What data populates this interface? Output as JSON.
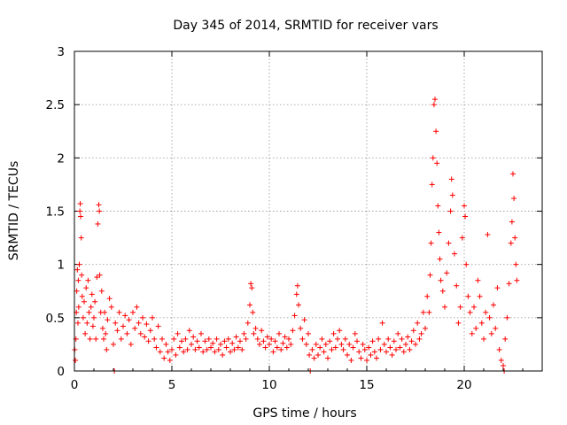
{
  "chart_data": {
    "type": "scatter",
    "title": "Day 345 of 2014, SRMTID for receiver vars",
    "xlabel": "GPS time / hours",
    "ylabel": "SRMTID / TECUs",
    "xlim": [
      0,
      24
    ],
    "ylim": [
      0,
      3
    ],
    "x_ticks": [
      {
        "value": 0,
        "label": "0"
      },
      {
        "value": 5,
        "label": "5"
      },
      {
        "value": 10,
        "label": "10"
      },
      {
        "value": 15,
        "label": "15"
      },
      {
        "value": 20,
        "label": "20"
      }
    ],
    "y_ticks": [
      {
        "value": 0,
        "label": "0"
      },
      {
        "value": 0.5,
        "label": "0.5"
      },
      {
        "value": 1,
        "label": "1"
      },
      {
        "value": 1.5,
        "label": "1.5"
      },
      {
        "value": 2,
        "label": "2"
      },
      {
        "value": 2.5,
        "label": "2.5"
      },
      {
        "value": 3,
        "label": "3"
      }
    ],
    "grid": true,
    "marker": "+",
    "marker_color": "#ff0000",
    "series": [
      {
        "name": "SRMTID",
        "points": [
          [
            0.02,
            0.2
          ],
          [
            0.05,
            0.1
          ],
          [
            0.08,
            0.3
          ],
          [
            0.1,
            0.55
          ],
          [
            0.12,
            0.75
          ],
          [
            0.15,
            0.95
          ],
          [
            0.18,
            0.45
          ],
          [
            0.2,
            0.85
          ],
          [
            0.22,
            0.6
          ],
          [
            0.25,
            1.0
          ],
          [
            0.28,
            1.5
          ],
          [
            0.3,
            1.57
          ],
          [
            0.32,
            1.45
          ],
          [
            0.35,
            1.25
          ],
          [
            0.37,
            0.9
          ],
          [
            0.4,
            0.7
          ],
          [
            0.45,
            0.5
          ],
          [
            0.5,
            0.65
          ],
          [
            0.55,
            0.35
          ],
          [
            0.6,
            0.78
          ],
          [
            0.65,
            0.45
          ],
          [
            0.7,
            0.85
          ],
          [
            0.75,
            0.55
          ],
          [
            0.8,
            0.3
          ],
          [
            0.85,
            0.6
          ],
          [
            0.9,
            0.72
          ],
          [
            0.95,
            0.42
          ],
          [
            1.0,
            0.5
          ],
          [
            1.05,
            0.65
          ],
          [
            1.1,
            0.3
          ],
          [
            1.15,
            0.88
          ],
          [
            1.2,
            1.38
          ],
          [
            1.25,
            1.56
          ],
          [
            1.28,
            1.5
          ],
          [
            1.3,
            0.9
          ],
          [
            1.35,
            0.55
          ],
          [
            1.4,
            0.75
          ],
          [
            1.45,
            0.4
          ],
          [
            1.5,
            0.3
          ],
          [
            1.55,
            0.55
          ],
          [
            1.6,
            0.35
          ],
          [
            1.65,
            0.2
          ],
          [
            1.7,
            0.48
          ],
          [
            1.8,
            0.68
          ],
          [
            1.9,
            0.6
          ],
          [
            2.0,
            0.25
          ],
          [
            2.05,
            0.0
          ],
          [
            2.1,
            0.45
          ],
          [
            2.2,
            0.38
          ],
          [
            2.3,
            0.55
          ],
          [
            2.4,
            0.3
          ],
          [
            2.5,
            0.42
          ],
          [
            2.6,
            0.52
          ],
          [
            2.7,
            0.35
          ],
          [
            2.8,
            0.48
          ],
          [
            2.9,
            0.25
          ],
          [
            3.0,
            0.55
          ],
          [
            3.1,
            0.4
          ],
          [
            3.2,
            0.6
          ],
          [
            3.3,
            0.45
          ],
          [
            3.4,
            0.35
          ],
          [
            3.5,
            0.5
          ],
          [
            3.6,
            0.32
          ],
          [
            3.7,
            0.44
          ],
          [
            3.8,
            0.28
          ],
          [
            3.9,
            0.38
          ],
          [
            4.0,
            0.5
          ],
          [
            4.1,
            0.3
          ],
          [
            4.2,
            0.22
          ],
          [
            4.3,
            0.42
          ],
          [
            4.4,
            0.18
          ],
          [
            4.5,
            0.3
          ],
          [
            4.6,
            0.12
          ],
          [
            4.7,
            0.25
          ],
          [
            4.8,
            0.18
          ],
          [
            4.9,
            0.1
          ],
          [
            5.0,
            0.2
          ],
          [
            5.1,
            0.3
          ],
          [
            5.2,
            0.15
          ],
          [
            5.3,
            0.35
          ],
          [
            5.4,
            0.22
          ],
          [
            5.5,
            0.28
          ],
          [
            5.6,
            0.18
          ],
          [
            5.7,
            0.3
          ],
          [
            5.8,
            0.2
          ],
          [
            5.9,
            0.38
          ],
          [
            6.0,
            0.25
          ],
          [
            6.1,
            0.32
          ],
          [
            6.2,
            0.2
          ],
          [
            6.3,
            0.28
          ],
          [
            6.4,
            0.22
          ],
          [
            6.5,
            0.35
          ],
          [
            6.6,
            0.18
          ],
          [
            6.7,
            0.28
          ],
          [
            6.8,
            0.2
          ],
          [
            6.9,
            0.3
          ],
          [
            7.0,
            0.22
          ],
          [
            7.1,
            0.26
          ],
          [
            7.2,
            0.18
          ],
          [
            7.3,
            0.3
          ],
          [
            7.4,
            0.2
          ],
          [
            7.5,
            0.25
          ],
          [
            7.6,
            0.15
          ],
          [
            7.7,
            0.28
          ],
          [
            7.8,
            0.22
          ],
          [
            7.9,
            0.3
          ],
          [
            8.0,
            0.18
          ],
          [
            8.1,
            0.26
          ],
          [
            8.2,
            0.2
          ],
          [
            8.3,
            0.32
          ],
          [
            8.4,
            0.22
          ],
          [
            8.5,
            0.28
          ],
          [
            8.6,
            0.2
          ],
          [
            8.7,
            0.35
          ],
          [
            8.8,
            0.3
          ],
          [
            8.9,
            0.45
          ],
          [
            9.0,
            0.62
          ],
          [
            9.05,
            0.82
          ],
          [
            9.1,
            0.78
          ],
          [
            9.15,
            0.55
          ],
          [
            9.2,
            0.35
          ],
          [
            9.3,
            0.4
          ],
          [
            9.4,
            0.3
          ],
          [
            9.5,
            0.25
          ],
          [
            9.6,
            0.38
          ],
          [
            9.7,
            0.28
          ],
          [
            9.8,
            0.22
          ],
          [
            9.9,
            0.32
          ],
          [
            10.0,
            0.25
          ],
          [
            10.1,
            0.3
          ],
          [
            10.2,
            0.18
          ],
          [
            10.3,
            0.28
          ],
          [
            10.4,
            0.22
          ],
          [
            10.5,
            0.35
          ],
          [
            10.6,
            0.2
          ],
          [
            10.7,
            0.26
          ],
          [
            10.8,
            0.32
          ],
          [
            10.9,
            0.22
          ],
          [
            11.0,
            0.3
          ],
          [
            11.1,
            0.25
          ],
          [
            11.2,
            0.38
          ],
          [
            11.3,
            0.52
          ],
          [
            11.4,
            0.72
          ],
          [
            11.45,
            0.8
          ],
          [
            11.5,
            0.62
          ],
          [
            11.6,
            0.4
          ],
          [
            11.7,
            0.3
          ],
          [
            11.8,
            0.48
          ],
          [
            11.9,
            0.25
          ],
          [
            12.0,
            0.35
          ],
          [
            12.05,
            0.15
          ],
          [
            12.1,
            0.0
          ],
          [
            12.2,
            0.2
          ],
          [
            12.3,
            0.12
          ],
          [
            12.4,
            0.25
          ],
          [
            12.5,
            0.15
          ],
          [
            12.6,
            0.22
          ],
          [
            12.7,
            0.3
          ],
          [
            12.8,
            0.18
          ],
          [
            12.9,
            0.25
          ],
          [
            13.0,
            0.12
          ],
          [
            13.1,
            0.28
          ],
          [
            13.2,
            0.2
          ],
          [
            13.3,
            0.35
          ],
          [
            13.4,
            0.22
          ],
          [
            13.5,
            0.3
          ],
          [
            13.6,
            0.38
          ],
          [
            13.7,
            0.25
          ],
          [
            13.8,
            0.2
          ],
          [
            13.9,
            0.3
          ],
          [
            14.0,
            0.15
          ],
          [
            14.1,
            0.25
          ],
          [
            14.2,
            0.1
          ],
          [
            14.3,
            0.22
          ],
          [
            14.4,
            0.35
          ],
          [
            14.5,
            0.28
          ],
          [
            14.6,
            0.18
          ],
          [
            14.7,
            0.12
          ],
          [
            14.8,
            0.25
          ],
          [
            14.9,
            0.2
          ],
          [
            15.0,
            0.1
          ],
          [
            15.1,
            0.22
          ],
          [
            15.2,
            0.15
          ],
          [
            15.3,
            0.28
          ],
          [
            15.4,
            0.18
          ],
          [
            15.5,
            0.12
          ],
          [
            15.6,
            0.3
          ],
          [
            15.7,
            0.2
          ],
          [
            15.8,
            0.45
          ],
          [
            15.9,
            0.25
          ],
          [
            16.0,
            0.18
          ],
          [
            16.1,
            0.3
          ],
          [
            16.2,
            0.22
          ],
          [
            16.3,
            0.15
          ],
          [
            16.4,
            0.28
          ],
          [
            16.5,
            0.2
          ],
          [
            16.6,
            0.35
          ],
          [
            16.7,
            0.22
          ],
          [
            16.8,
            0.3
          ],
          [
            16.9,
            0.18
          ],
          [
            17.0,
            0.25
          ],
          [
            17.1,
            0.32
          ],
          [
            17.2,
            0.2
          ],
          [
            17.3,
            0.28
          ],
          [
            17.4,
            0.38
          ],
          [
            17.5,
            0.25
          ],
          [
            17.6,
            0.45
          ],
          [
            17.7,
            0.3
          ],
          [
            17.8,
            0.35
          ],
          [
            17.9,
            0.55
          ],
          [
            18.0,
            0.4
          ],
          [
            18.1,
            0.7
          ],
          [
            18.2,
            0.55
          ],
          [
            18.25,
            0.9
          ],
          [
            18.3,
            1.2
          ],
          [
            18.35,
            1.75
          ],
          [
            18.4,
            2.0
          ],
          [
            18.45,
            2.5
          ],
          [
            18.5,
            2.55
          ],
          [
            18.55,
            2.25
          ],
          [
            18.6,
            1.95
          ],
          [
            18.65,
            1.55
          ],
          [
            18.7,
            1.3
          ],
          [
            18.75,
            1.05
          ],
          [
            18.8,
            0.85
          ],
          [
            18.9,
            0.75
          ],
          [
            19.0,
            0.6
          ],
          [
            19.1,
            0.92
          ],
          [
            19.2,
            1.2
          ],
          [
            19.3,
            1.5
          ],
          [
            19.35,
            1.8
          ],
          [
            19.4,
            1.65
          ],
          [
            19.5,
            1.1
          ],
          [
            19.6,
            0.8
          ],
          [
            19.7,
            0.45
          ],
          [
            19.8,
            0.6
          ],
          [
            19.9,
            1.25
          ],
          [
            20.0,
            1.55
          ],
          [
            20.05,
            1.45
          ],
          [
            20.1,
            1.0
          ],
          [
            20.2,
            0.7
          ],
          [
            20.3,
            0.55
          ],
          [
            20.4,
            0.35
          ],
          [
            20.5,
            0.6
          ],
          [
            20.6,
            0.4
          ],
          [
            20.7,
            0.85
          ],
          [
            20.8,
            0.7
          ],
          [
            20.9,
            0.45
          ],
          [
            21.0,
            0.3
          ],
          [
            21.1,
            0.55
          ],
          [
            21.2,
            1.28
          ],
          [
            21.3,
            0.5
          ],
          [
            21.4,
            0.35
          ],
          [
            21.5,
            0.62
          ],
          [
            21.6,
            0.4
          ],
          [
            21.7,
            0.78
          ],
          [
            21.8,
            0.2
          ],
          [
            21.9,
            0.1
          ],
          [
            22.0,
            0.05
          ],
          [
            22.05,
            0.0
          ],
          [
            22.1,
            0.3
          ],
          [
            22.2,
            0.5
          ],
          [
            22.3,
            0.82
          ],
          [
            22.4,
            1.2
          ],
          [
            22.45,
            1.4
          ],
          [
            22.5,
            1.85
          ],
          [
            22.55,
            1.62
          ],
          [
            22.6,
            1.25
          ],
          [
            22.65,
            1.0
          ],
          [
            22.7,
            0.85
          ]
        ]
      }
    ]
  }
}
